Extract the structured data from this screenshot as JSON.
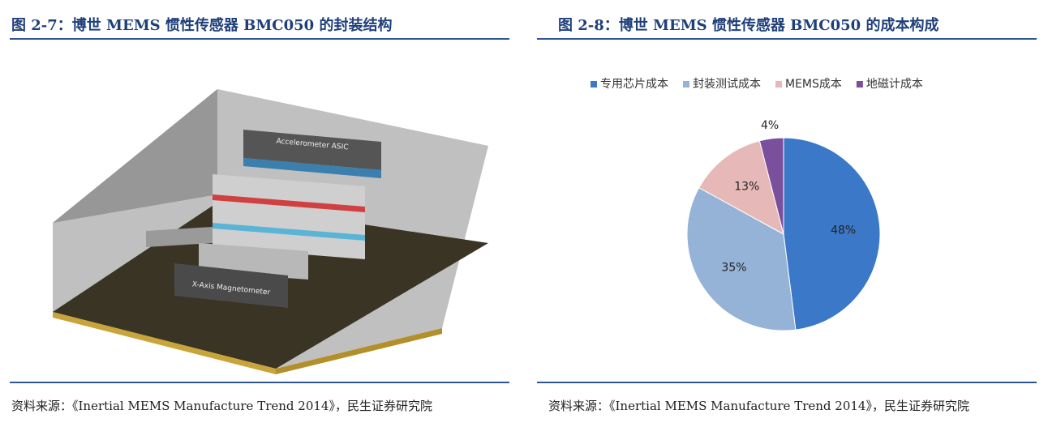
{
  "left": {
    "title": "图 2-7：博世 MEMS 惯性传感器 BMC050 的封装结构",
    "source": "资料来源：《Inertial MEMS Manufacture Trend 2014》，民生证券研究院",
    "figure_labels": [
      "Accelerometer ASIC",
      "X-Axis Magnetometer"
    ]
  },
  "right": {
    "title": "图 2-8：博世 MEMS 惯性传感器 BMC050 的成本构成",
    "source": "资料来源：《Inertial MEMS Manufacture Trend 2014》，民生证券研究院"
  },
  "chart_data": {
    "type": "pie",
    "categories": [
      "专用芯片成本",
      "封装测试成本",
      "MEMS成本",
      "地磁计成本"
    ],
    "values": [
      48,
      35,
      13,
      4
    ],
    "value_labels": [
      "48%",
      "35%",
      "13%",
      "4%"
    ],
    "colors": [
      "#3c78c8",
      "#95b3d7",
      "#e6b9b8",
      "#7a4f9c"
    ],
    "legend": "top"
  }
}
